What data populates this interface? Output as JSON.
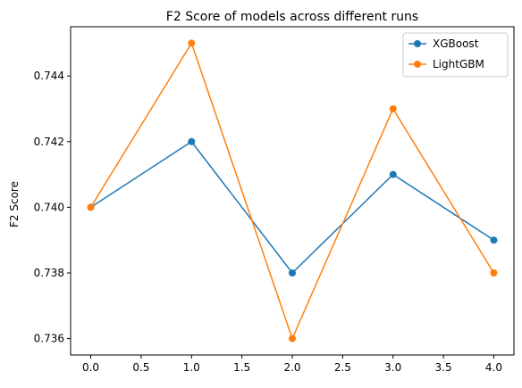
{
  "chart_data": {
    "type": "line",
    "title": "F2 Score of models across different runs",
    "xlabel": "",
    "ylabel": "F2 Score",
    "x": [
      0,
      1,
      2,
      3,
      4
    ],
    "xlim": [
      -0.2,
      4.2
    ],
    "ylim": [
      0.7355,
      0.7455
    ],
    "xticks": [
      0.0,
      0.5,
      1.0,
      1.5,
      2.0,
      2.5,
      3.0,
      3.5,
      4.0
    ],
    "xtick_labels": [
      "0.0",
      "0.5",
      "1.0",
      "1.5",
      "2.0",
      "2.5",
      "3.0",
      "3.5",
      "4.0"
    ],
    "yticks": [
      0.736,
      0.738,
      0.74,
      0.742,
      0.744
    ],
    "ytick_labels": [
      "0.736",
      "0.738",
      "0.740",
      "0.742",
      "0.744"
    ],
    "grid": false,
    "legend_position": "top-right",
    "series": [
      {
        "name": "XGBoost",
        "values": [
          0.74,
          0.742,
          0.738,
          0.741,
          0.739
        ],
        "color": "#1f77b4",
        "marker": "circle"
      },
      {
        "name": "LightGBM",
        "values": [
          0.74,
          0.745,
          0.736,
          0.743,
          0.738
        ],
        "color": "#ff7f0e",
        "marker": "circle"
      }
    ]
  }
}
